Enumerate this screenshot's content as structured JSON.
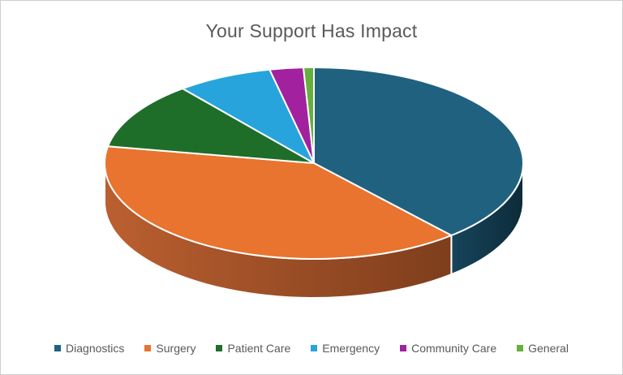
{
  "window": {
    "background": "#FFFFFF",
    "border_color": "#CFCFCF"
  },
  "title": {
    "text": "Your Support Has Impact",
    "color": "#595959"
  },
  "chart_data": {
    "type": "pie",
    "style": "3d",
    "title": "Your Support Has Impact",
    "start_angle_deg": 0,
    "direction": "clockwise",
    "legend_position": "bottom",
    "data_labels": false,
    "values_are_estimated_from_slice_angles": true,
    "categories": [
      "Diagnostics",
      "Surgery",
      "Patient Care",
      "Emergency",
      "Community Care",
      "General"
    ],
    "values_pct": [
      38.6,
      39.2,
      11.4,
      7.4,
      2.6,
      0.8
    ],
    "colors": [
      "#20617F",
      "#E8742F",
      "#1E6E2A",
      "#27A4DB",
      "#A2219E",
      "#65B03C"
    ],
    "side_colors": [
      [
        "#16455B",
        "#0D2B39"
      ],
      [
        "#BB5F30",
        "#7E3E1C"
      ],
      [
        "#123F19",
        "#123F19"
      ],
      [
        "#176788",
        "#176788"
      ],
      [
        "#6B1468",
        "#6B1468"
      ],
      [
        "#3F7423",
        "#3F7423"
      ]
    ],
    "separator_color": "#FFFFFF"
  },
  "legend": {
    "text_color": "#595959",
    "marker": "square"
  }
}
